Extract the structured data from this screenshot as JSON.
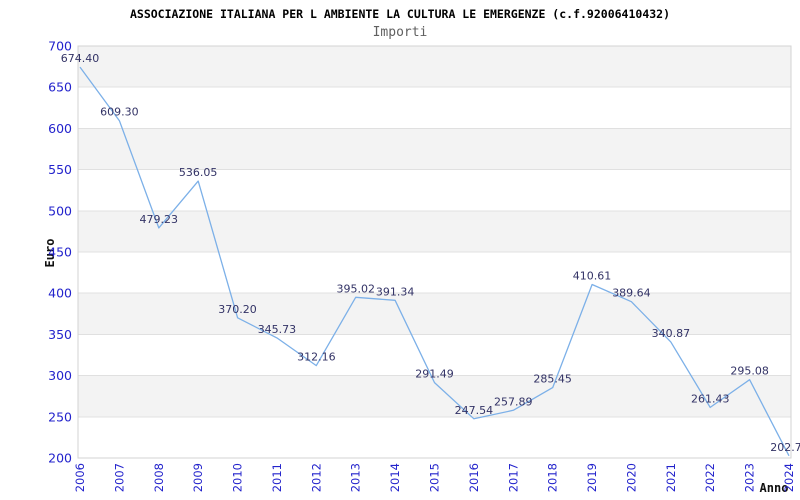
{
  "header": {
    "title": "ASSOCIAZIONE ITALIANA PER L AMBIENTE LA CULTURA LE EMERGENZE (c.f.92006410432)",
    "subtitle": "Importi"
  },
  "chart_data": {
    "type": "line",
    "title": "ASSOCIAZIONE ITALIANA PER L AMBIENTE LA CULTURA LE EMERGENZE (c.f.92006410432)",
    "subtitle": "Importi",
    "xlabel": "Anno",
    "ylabel": "Euro",
    "categories": [
      "2006",
      "2007",
      "2008",
      "2009",
      "2010",
      "2011",
      "2012",
      "2013",
      "2014",
      "2015",
      "2016",
      "2017",
      "2018",
      "2019",
      "2020",
      "2021",
      "2022",
      "2023",
      "2024"
    ],
    "values": [
      674.4,
      609.3,
      479.23,
      536.05,
      370.2,
      345.73,
      312.16,
      395.02,
      391.34,
      291.49,
      247.54,
      257.89,
      285.45,
      410.61,
      389.64,
      340.87,
      261.43,
      295.08,
      202.7
    ],
    "point_labels": [
      "674.40",
      "609.30",
      "479.23",
      "536.05",
      "370.20",
      "345.73",
      "312.16",
      "395.02",
      "391.34",
      "291.49",
      "247.54",
      "257.89",
      "285.45",
      "410.61",
      "389.64",
      "340.87",
      "261.43",
      "295.08",
      "202.7"
    ],
    "ylim": [
      200,
      700
    ],
    "ytick_step": 50,
    "grid": "horizontal",
    "bands": "alternating-50",
    "legend": "none",
    "colors": {
      "line": "#7cb0e8",
      "point_label": "#333366",
      "tick_label": "#2323cc",
      "band_fill": "#f3f3f3",
      "grid_line": "#e0e0e0",
      "plot_border": "#d3d3d3",
      "title": "#000000",
      "subtitle": "#606060",
      "axis_title": "#111111",
      "background": "#ffffff"
    }
  }
}
